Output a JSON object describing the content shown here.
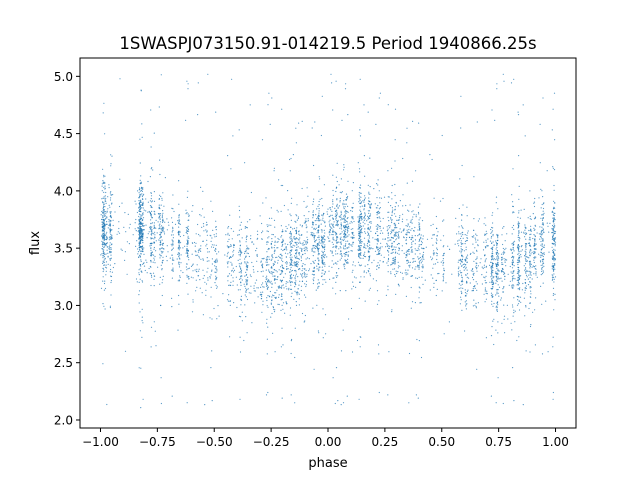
{
  "chart_data": {
    "type": "scatter",
    "title": "1SWASPJ073150.91-014219.5 Period 1940866.25s",
    "xlabel": "phase",
    "ylabel": "flux",
    "xlim": [
      -1.09,
      1.09
    ],
    "ylim": [
      1.93,
      5.16
    ],
    "xticks": [
      -1.0,
      -0.75,
      -0.5,
      -0.25,
      0.0,
      0.25,
      0.5,
      0.75,
      1.0
    ],
    "xtick_labels": [
      "−1.00",
      "−0.75",
      "−0.50",
      "−0.25",
      "0.00",
      "0.25",
      "0.50",
      "0.75",
      "1.00"
    ],
    "yticks": [
      2.0,
      2.5,
      3.0,
      3.5,
      4.0,
      4.5,
      5.0
    ],
    "ytick_labels": [
      "2.0",
      "2.5",
      "3.0",
      "3.5",
      "4.0",
      "4.5",
      "5.0"
    ],
    "grid": false,
    "color": "#1f77b4",
    "phase_range": [
      -1.0,
      1.0
    ],
    "flux_range": [
      2.1,
      5.02
    ],
    "binned_profile": {
      "phase_bin_centers": [
        -0.95,
        -0.85,
        -0.75,
        -0.65,
        -0.55,
        -0.45,
        -0.35,
        -0.25,
        -0.15,
        -0.05,
        0.05,
        0.15,
        0.25,
        0.35,
        0.45,
        0.55,
        0.65,
        0.75,
        0.85,
        0.95
      ],
      "mean_flux": [
        3.66,
        3.65,
        3.6,
        3.52,
        3.45,
        3.4,
        3.35,
        3.32,
        3.4,
        3.52,
        3.66,
        3.65,
        3.6,
        3.52,
        3.45,
        3.4,
        3.35,
        3.32,
        3.4,
        3.55
      ],
      "flux_std": [
        0.2,
        0.2,
        0.2,
        0.2,
        0.2,
        0.2,
        0.2,
        0.22,
        0.22,
        0.2,
        0.2,
        0.2,
        0.2,
        0.2,
        0.2,
        0.2,
        0.2,
        0.22,
        0.22,
        0.2
      ],
      "relative_density": [
        1.0,
        0.95,
        0.75,
        0.55,
        0.35,
        0.35,
        0.5,
        0.8,
        0.95,
        0.9,
        1.0,
        0.95,
        0.75,
        0.55,
        0.35,
        0.35,
        0.5,
        0.8,
        0.95,
        0.9
      ]
    }
  }
}
